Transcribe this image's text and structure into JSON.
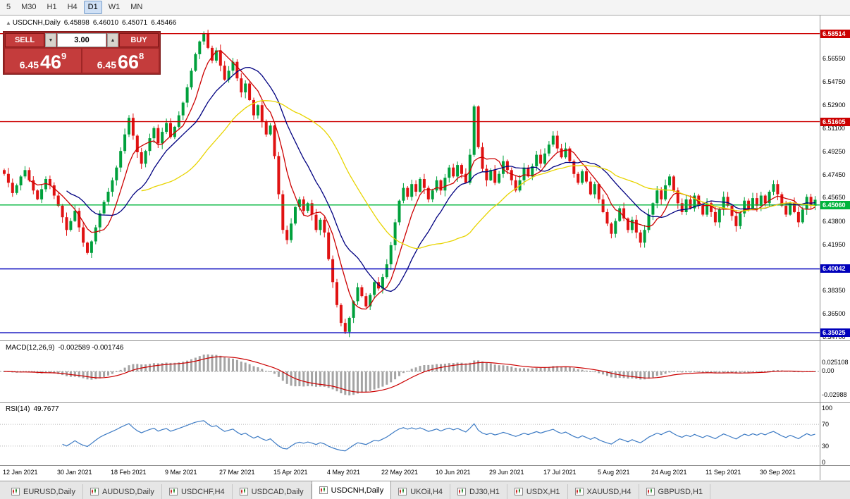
{
  "toolbar": {
    "timeframes": [
      "5",
      "M30",
      "H1",
      "H4",
      "D1",
      "W1",
      "MN"
    ],
    "active": "D1"
  },
  "chart_header": {
    "arrow": "▲",
    "symbol": "USDCNH,Daily",
    "open": "6.45898",
    "high": "6.46010",
    "low": "6.45071",
    "close": "6.45466"
  },
  "trade_panel": {
    "sell_label": "SELL",
    "buy_label": "BUY",
    "volume": "3.00",
    "sell_price": {
      "base": "6.45",
      "big": "46",
      "sup": "9"
    },
    "buy_price": {
      "base": "6.45",
      "big": "66",
      "sup": "8"
    }
  },
  "icons": {
    "spinner_up": "▲",
    "spinner_down": "▼"
  },
  "tabs": {
    "items": [
      "EURUSD,Daily",
      "AUDUSD,Daily",
      "USDCHF,H4",
      "USDCAD,Daily",
      "USDCNH,Daily",
      "UKOil,H4",
      "DJ30,H1",
      "USDX,H1",
      "XAUUSD,H4",
      "GBPUSD,H1"
    ],
    "active": "USDCNH,Daily"
  },
  "chart_data": {
    "type": "candlestick",
    "symbol": "USDCNH",
    "timeframe": "Daily",
    "ohlc_display": {
      "open": "6.45898",
      "high": "6.46010",
      "low": "6.45071",
      "close": "6.45466"
    },
    "candle_up_color": "#00a03c",
    "candle_down_color": "#e01212",
    "price_axis_ticks": [
      "6.56550",
      "6.54750",
      "6.52900",
      "6.51100",
      "6.49250",
      "6.47450",
      "6.45650",
      "6.43800",
      "6.41950",
      "6.40150",
      "6.38350",
      "6.36500",
      "6.34700"
    ],
    "horizontal_lines": [
      {
        "price": 6.58514,
        "label": "6.58514",
        "color": "#cc0000"
      },
      {
        "price": 6.51605,
        "label": "6.51605",
        "color": "#cc0000"
      },
      {
        "price": 6.4506,
        "label": "6.45060",
        "color": "#00b43c"
      },
      {
        "price": 6.40042,
        "label": "6.40042",
        "color": "#0000bb"
      },
      {
        "price": 6.35025,
        "label": "6.35025",
        "color": "#0000bb"
      }
    ],
    "moving_averages": [
      {
        "period": 7,
        "color": "#cc0000"
      },
      {
        "period": 16,
        "color": "#000080"
      },
      {
        "period": 34,
        "color": "#e8d400"
      }
    ],
    "dates": [
      "12 Jan 2021",
      "30 Jan 2021",
      "18 Feb 2021",
      "9 Mar 2021",
      "27 Mar 2021",
      "15 Apr 2021",
      "4 May 2021",
      "22 May 2021",
      "10 Jun 2021",
      "29 Jun 2021",
      "17 Jul 2021",
      "5 Aug 2021",
      "24 Aug 2021",
      "11 Sep 2021",
      "30 Sep 2021"
    ],
    "candles_per_date_label": 13,
    "closes": [
      6.475,
      6.468,
      6.46,
      6.466,
      6.473,
      6.478,
      6.47,
      6.462,
      6.455,
      6.463,
      6.471,
      6.466,
      6.458,
      6.45,
      6.441,
      6.431,
      6.438,
      6.446,
      6.433,
      6.421,
      6.413,
      6.422,
      6.433,
      6.444,
      6.453,
      6.461,
      6.47,
      6.48,
      6.493,
      6.506,
      6.519,
      6.505,
      6.492,
      6.483,
      6.493,
      6.503,
      6.511,
      6.499,
      6.508,
      6.515,
      6.504,
      6.512,
      6.521,
      6.531,
      6.543,
      6.556,
      6.569,
      6.579,
      6.585,
      6.574,
      6.564,
      6.572,
      6.56,
      6.549,
      6.556,
      6.563,
      6.55,
      6.539,
      6.546,
      6.533,
      6.521,
      6.529,
      6.516,
      6.506,
      6.513,
      6.489,
      6.459,
      6.431,
      6.423,
      6.436,
      6.449,
      6.455,
      6.446,
      6.452,
      6.443,
      6.431,
      6.439,
      6.429,
      6.408,
      6.39,
      6.372,
      6.358,
      6.351,
      6.362,
      6.375,
      6.386,
      6.379,
      6.371,
      6.38,
      6.39,
      6.385,
      6.394,
      6.404,
      6.419,
      6.437,
      6.454,
      6.464,
      6.457,
      6.467,
      6.461,
      6.471,
      6.464,
      6.455,
      6.462,
      6.47,
      6.462,
      6.472,
      6.48,
      6.473,
      6.482,
      6.475,
      6.468,
      6.49,
      6.528,
      6.496,
      6.479,
      6.47,
      6.478,
      6.468,
      6.475,
      6.485,
      6.478,
      6.47,
      6.462,
      6.47,
      6.48,
      6.473,
      6.481,
      6.49,
      6.483,
      6.491,
      6.498,
      6.505,
      6.495,
      6.488,
      6.495,
      6.485,
      6.475,
      6.468,
      6.477,
      6.469,
      6.459,
      6.467,
      6.455,
      6.445,
      6.436,
      6.428,
      6.438,
      6.448,
      6.44,
      6.431,
      6.439,
      6.429,
      6.421,
      6.431,
      6.443,
      6.452,
      6.462,
      6.455,
      6.466,
      6.473,
      6.462,
      6.452,
      6.445,
      6.455,
      6.448,
      6.458,
      6.45,
      6.443,
      6.452,
      6.445,
      6.437,
      6.447,
      6.457,
      6.45,
      6.442,
      6.434,
      6.444,
      6.454,
      6.448,
      6.456,
      6.45,
      6.458,
      6.452,
      6.461,
      6.467,
      6.459,
      6.45,
      6.443,
      6.452,
      6.445,
      6.437,
      6.447,
      6.457,
      6.45,
      6.4547
    ],
    "macd": {
      "label": "MACD(12,26,9)",
      "values_text": "-0.002589 -0.001746",
      "fast": 12,
      "slow": 26,
      "signal": 9,
      "scale_labels": [
        "0.025108",
        "0.00",
        "-0.02988"
      ],
      "hist_color": "#a4a4a4",
      "signal_color": "#cc0000"
    },
    "rsi": {
      "label": "RSI(14)",
      "value_text": "49.7677",
      "period": 14,
      "levels": [
        100,
        70,
        30,
        0
      ],
      "line_color": "#3d7bc4"
    }
  }
}
